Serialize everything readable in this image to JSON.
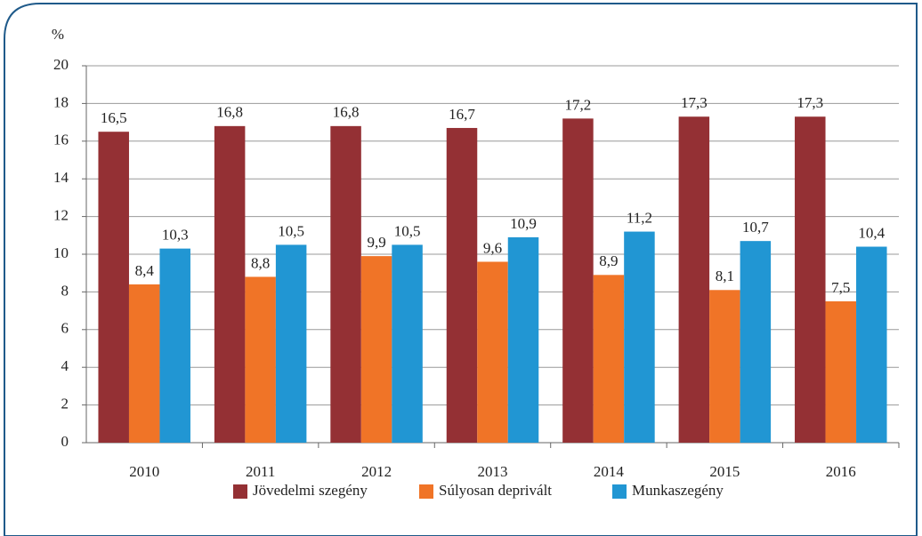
{
  "chart_data": {
    "type": "bar",
    "y_label": "%",
    "categories": [
      "2010",
      "2011",
      "2012",
      "2013",
      "2014",
      "2015",
      "2016"
    ],
    "series": [
      {
        "name": "Jövedelmi szegény",
        "color": "#943034",
        "values": [
          16.5,
          16.8,
          16.8,
          16.7,
          17.2,
          17.3,
          17.3
        ],
        "value_labels": [
          "16,5",
          "16,8",
          "16,8",
          "16,7",
          "17,2",
          "17,3",
          "17,3"
        ]
      },
      {
        "name": "Súlyosan deprivált",
        "color": "#f07427",
        "values": [
          8.4,
          8.8,
          9.9,
          9.6,
          8.9,
          8.1,
          7.5
        ],
        "value_labels": [
          "8,4",
          "8,8",
          "9,9",
          "9,6",
          "8,9",
          "8,1",
          "7,5"
        ]
      },
      {
        "name": "Munkaszegény",
        "color": "#2196d3",
        "values": [
          10.3,
          10.5,
          10.5,
          10.9,
          11.2,
          10.7,
          10.4
        ],
        "value_labels": [
          "10,3",
          "10,5",
          "10,5",
          "10,9",
          "11,2",
          "10,7",
          "10,4"
        ]
      }
    ],
    "ylim": [
      0,
      20
    ],
    "yticks": [
      0,
      2,
      4,
      6,
      8,
      10,
      12,
      14,
      16,
      18,
      20
    ],
    "grid": true,
    "legend": "bottom"
  }
}
